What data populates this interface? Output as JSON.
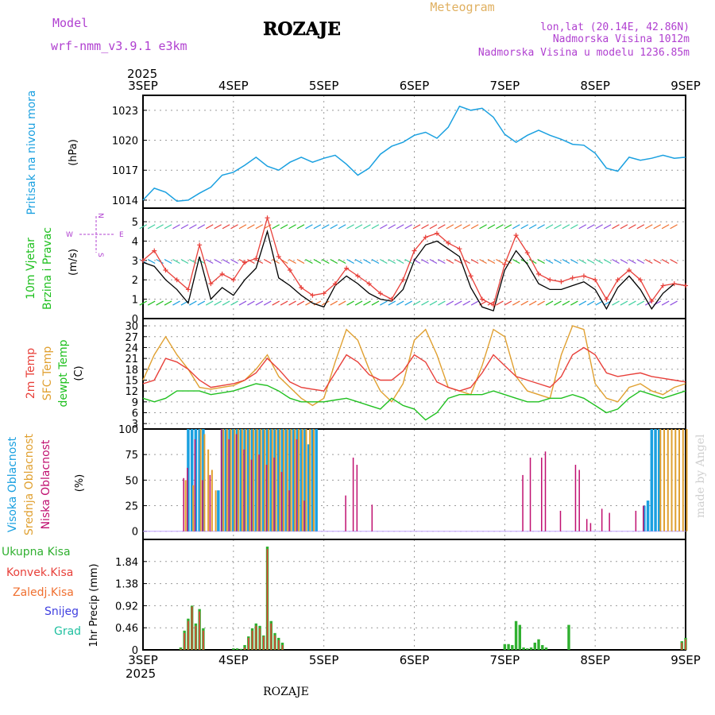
{
  "header": {
    "model_label": "Model",
    "model_name": "wrf-nmm_v3.9.1 e3km",
    "station_title": "ROZAJE",
    "meteogram_label": "Meteogram",
    "lonlat": "lon,lat (20.14E, 42.86N)",
    "elevation": "Nadmorska Visina 1012m",
    "model_elevation": "Nadmorska Visina u modelu 1236.85m"
  },
  "footer": {
    "station": "ROZAJE",
    "credit": "made by Angel"
  },
  "time_axis": {
    "year": "2025",
    "labels": [
      "3SEP",
      "4SEP",
      "5SEP",
      "6SEP",
      "7SEP",
      "8SEP",
      "9SEP"
    ]
  },
  "colors": {
    "pressure": "#1aa0e0",
    "wind_speed": "#000000",
    "wind_gust": "#e8403a",
    "temp_2m": "#e8403a",
    "temp_sfc": "#e0a030",
    "dewpoint": "#20c020",
    "cloud_high": "#1aa0e0",
    "cloud_mid": "#e0a030",
    "cloud_low": "#c01070",
    "precip_total": "#30b030",
    "precip_conv": "#e8403a"
  },
  "panels": {
    "pressure": {
      "ylabel_name": "Pritisak na nivou mora",
      "ylabel_unit": "(hPa)",
      "ticks": [
        "1014",
        "1017",
        "1020",
        "1023"
      ]
    },
    "wind": {
      "ylabel_name": "10m Vjetar",
      "ylabel_name2": "Brzina i Pravac",
      "ylabel_unit": "(m/s)",
      "ticks": [
        "0",
        "1",
        "2",
        "3",
        "4",
        "5"
      ],
      "compass_w": "W",
      "compass_e": "E",
      "compass_n": "N",
      "compass_s": "S"
    },
    "temperature": {
      "ylabel_t2": "2m Temp",
      "ylabel_sfc": "SFC Temp",
      "ylabel_dew": "dewpt Temp",
      "ylabel_unit": "(C)",
      "ticks": [
        "3",
        "6",
        "9",
        "12",
        "15",
        "18",
        "21",
        "24",
        "27",
        "30"
      ]
    },
    "clouds": {
      "ylabel_high": "Visoka Oblacnost",
      "ylabel_mid": "Srednja Oblacnost",
      "ylabel_low": "Niska Oblacnost",
      "ylabel_unit": "(%)",
      "ticks": [
        "0",
        "25",
        "50",
        "75",
        "100"
      ]
    },
    "precip": {
      "legend": [
        "Ukupna Kisa",
        "Konvek.Kisa",
        "Zaledj.Kisa",
        "Snijeg",
        "Grad"
      ],
      "ylabel": "1hr Precip (mm)",
      "ticks": [
        "0",
        "0.46",
        "0.92",
        "1.38",
        "1.84"
      ]
    }
  },
  "chart_data": {
    "type": "meteogram",
    "x_unit": "hours from 3SEP 00Z",
    "pressure": {
      "ylim": [
        1013.2,
        1024.5
      ],
      "x": [
        0,
        3,
        6,
        9,
        12,
        15,
        18,
        21,
        24,
        27,
        30,
        33,
        36,
        39,
        42,
        45,
        48,
        51,
        54,
        57,
        60,
        63,
        66,
        69,
        72,
        75,
        78,
        81,
        84,
        87,
        90,
        93,
        96,
        99,
        102,
        105,
        108,
        111,
        114,
        117,
        120,
        123,
        126,
        129,
        132,
        135,
        138,
        141,
        144
      ],
      "y": [
        1014.0,
        1015.2,
        1014.8,
        1013.9,
        1014.0,
        1014.7,
        1015.3,
        1016.5,
        1016.8,
        1017.5,
        1018.3,
        1017.4,
        1017.0,
        1017.8,
        1018.3,
        1017.8,
        1018.2,
        1018.5,
        1017.6,
        1016.5,
        1017.2,
        1018.6,
        1019.4,
        1019.8,
        1020.5,
        1020.8,
        1020.2,
        1021.3,
        1023.4,
        1023.0,
        1023.2,
        1022.3,
        1020.6,
        1019.8,
        1020.5,
        1021.0,
        1020.5,
        1020.1,
        1019.6,
        1019.5,
        1018.7,
        1017.2,
        1016.9,
        1018.3,
        1018.0,
        1018.2,
        1018.5,
        1018.2,
        1018.3
      ]
    },
    "wind": {
      "ylim": [
        0,
        5.7
      ],
      "x": [
        0,
        3,
        6,
        9,
        12,
        15,
        18,
        21,
        24,
        27,
        30,
        33,
        36,
        39,
        42,
        45,
        48,
        51,
        54,
        57,
        60,
        63,
        66,
        69,
        72,
        75,
        78,
        81,
        84,
        87,
        90,
        93,
        96,
        99,
        102,
        105,
        108,
        111,
        114,
        117,
        120,
        123,
        126,
        129,
        132,
        135,
        138,
        141,
        144
      ],
      "speed": [
        2.9,
        2.7,
        2.0,
        1.5,
        0.8,
        3.2,
        1.0,
        1.6,
        1.2,
        2.0,
        2.6,
        4.5,
        2.1,
        1.7,
        1.2,
        0.8,
        0.6,
        1.7,
        2.2,
        1.8,
        1.3,
        1.0,
        0.9,
        1.5,
        3.0,
        3.8,
        4.0,
        3.6,
        3.2,
        1.6,
        0.6,
        0.4,
        2.5,
        3.5,
        2.8,
        1.8,
        1.5,
        1.5,
        1.7,
        1.9,
        1.5,
        0.5,
        1.6,
        2.2,
        1.5,
        0.5,
        1.3,
        1.8,
        1.7
      ],
      "gust": [
        3.0,
        3.5,
        2.5,
        2.0,
        1.5,
        3.8,
        1.8,
        2.3,
        2.0,
        2.9,
        3.1,
        5.2,
        3.2,
        2.5,
        1.6,
        1.2,
        1.3,
        1.8,
        2.6,
        2.2,
        1.8,
        1.3,
        1.0,
        2.0,
        3.5,
        4.2,
        4.4,
        3.9,
        3.6,
        2.2,
        1.0,
        0.7,
        2.8,
        4.3,
        3.4,
        2.3,
        2.0,
        1.9,
        2.1,
        2.2,
        2.0,
        1.0,
        2.0,
        2.5,
        2.0,
        0.9,
        1.7,
        1.8,
        1.7
      ]
    },
    "temperature": {
      "ylim": [
        1.5,
        32
      ],
      "x": [
        0,
        3,
        6,
        9,
        12,
        15,
        18,
        21,
        24,
        27,
        30,
        33,
        36,
        39,
        42,
        45,
        48,
        51,
        54,
        57,
        60,
        63,
        66,
        69,
        72,
        75,
        78,
        81,
        84,
        87,
        90,
        93,
        96,
        99,
        102,
        105,
        108,
        111,
        114,
        117,
        120,
        123,
        126,
        129,
        132,
        135,
        138,
        141,
        144
      ],
      "t2m": [
        14,
        15,
        21,
        20,
        18,
        15,
        13,
        13.5,
        14,
        15,
        17,
        21,
        18,
        14.5,
        13,
        12.5,
        12,
        17,
        22,
        20,
        16.5,
        15,
        15,
        17.5,
        22,
        20,
        14.5,
        13,
        12,
        13,
        17,
        22,
        19,
        16,
        15,
        14,
        13,
        16,
        22,
        24,
        22,
        17,
        16,
        16.5,
        17,
        16,
        15.5,
        15,
        14.5
      ],
      "tsfc": [
        15,
        22,
        27,
        22,
        18,
        13,
        12.5,
        13,
        13.5,
        15,
        18,
        22,
        16,
        13,
        10,
        8,
        10,
        20,
        29,
        26,
        18,
        12,
        9,
        14,
        26,
        29,
        22,
        13,
        12,
        11,
        19,
        29,
        27,
        16,
        12,
        11,
        10,
        22,
        30,
        29,
        14,
        10,
        9,
        13,
        14,
        12,
        11,
        13,
        14
      ],
      "td": [
        10,
        9,
        10,
        12,
        12,
        12,
        11,
        11.5,
        12,
        13,
        14,
        13.5,
        12,
        10,
        9,
        9,
        9,
        9.5,
        10,
        9,
        8,
        7,
        10,
        8,
        7,
        4,
        6,
        10,
        11,
        11,
        11,
        12,
        11,
        10,
        9,
        9,
        10,
        10,
        11,
        10,
        8,
        6,
        7,
        10,
        12,
        11,
        10,
        11,
        12
      ]
    },
    "clouds": {
      "ylim": [
        0,
        100
      ],
      "high": {
        "x": [
          12,
          13,
          14,
          15,
          16,
          20,
          21,
          22,
          23,
          24,
          25,
          26,
          27,
          28,
          29,
          30,
          31,
          32,
          33,
          34,
          35,
          36,
          37,
          38,
          39,
          40,
          41,
          42,
          43,
          44,
          45,
          46,
          133,
          134,
          135,
          136,
          137
        ],
        "y": [
          100,
          100,
          100,
          100,
          100,
          40,
          100,
          100,
          100,
          100,
          100,
          100,
          100,
          100,
          100,
          100,
          100,
          100,
          100,
          100,
          100,
          100,
          100,
          100,
          100,
          100,
          100,
          100,
          100,
          85,
          100,
          100,
          25,
          30,
          100,
          100,
          100
        ]
      },
      "mid": {
        "x": [
          11,
          13,
          15,
          16,
          17,
          18,
          19,
          21,
          22,
          23,
          24,
          25,
          26,
          27,
          28,
          29,
          30,
          31,
          32,
          33,
          34,
          35,
          36,
          37,
          38,
          39,
          40,
          41,
          42,
          43,
          44,
          45,
          137,
          138,
          139,
          140,
          141,
          142,
          143,
          144
        ],
        "y": [
          50,
          45,
          100,
          95,
          80,
          60,
          40,
          100,
          100,
          100,
          100,
          100,
          100,
          100,
          100,
          100,
          100,
          100,
          100,
          100,
          100,
          100,
          100,
          100,
          100,
          100,
          100,
          100,
          100,
          100,
          100,
          100,
          100,
          100,
          100,
          100,
          100,
          100,
          100,
          100
        ]
      },
      "low": {
        "x": [
          11,
          12,
          14,
          16,
          18,
          21,
          23,
          25,
          27,
          29,
          31,
          33,
          35,
          37,
          39,
          41,
          43,
          54,
          56,
          57,
          61,
          101,
          103,
          106,
          107,
          111,
          115,
          116,
          118,
          119,
          122,
          124,
          131,
          133
        ],
        "y": [
          52,
          62,
          90,
          50,
          55,
          100,
          90,
          95,
          80,
          70,
          75,
          65,
          72,
          58,
          40,
          90,
          30,
          35,
          72,
          65,
          26,
          55,
          72,
          72,
          78,
          20,
          65,
          60,
          12,
          8,
          22,
          18,
          20,
          25
        ]
      }
    },
    "precip": {
      "ylim": [
        0,
        2.3
      ],
      "x": [
        10,
        11,
        12,
        13,
        14,
        15,
        16,
        24,
        25,
        26,
        27,
        28,
        29,
        30,
        31,
        32,
        33,
        34,
        35,
        36,
        37,
        96,
        97,
        98,
        99,
        100,
        101,
        102,
        103,
        104,
        105,
        106,
        107,
        113,
        143,
        144
      ],
      "total": [
        0.05,
        0.4,
        0.65,
        0.92,
        0.55,
        0.85,
        0.45,
        0.03,
        0.03,
        0.02,
        0.1,
        0.28,
        0.45,
        0.55,
        0.5,
        0.3,
        2.15,
        0.6,
        0.35,
        0.25,
        0.15,
        0.12,
        0.12,
        0.1,
        0.6,
        0.52,
        0.05,
        0.03,
        0.05,
        0.15,
        0.22,
        0.1,
        0.05,
        0.52,
        0.18,
        0.25
      ],
      "conv": [
        0.02,
        0.35,
        0.6,
        0.9,
        0.5,
        0.8,
        0.4,
        0.0,
        0.0,
        0.0,
        0.05,
        0.25,
        0.4,
        0.5,
        0.45,
        0.28,
        2.1,
        0.55,
        0.3,
        0.2,
        0.1,
        0.0,
        0.0,
        0.0,
        0.0,
        0.0,
        0.0,
        0.0,
        0.0,
        0.0,
        0.0,
        0.0,
        0.0,
        0.0,
        0.15,
        0.22
      ]
    }
  }
}
